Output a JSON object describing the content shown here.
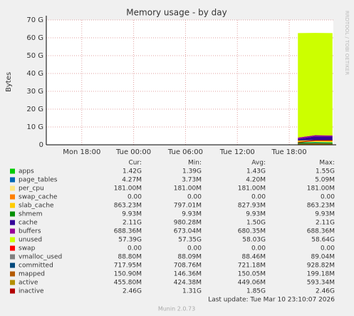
{
  "chart_data": {
    "type": "area",
    "title": "Memory usage - by day",
    "y_label": "Bytes",
    "side_text": "RRDTOOL / TOBI OETIKER",
    "x": [
      25,
      27,
      29
    ],
    "xlim": [
      -4.1,
      29.1
    ],
    "xticks": [
      {
        "value": 0,
        "label": "Mon 18:00"
      },
      {
        "value": 6,
        "label": "Tue 00:00"
      },
      {
        "value": 12,
        "label": "Tue 06:00"
      },
      {
        "value": 18,
        "label": "Tue 12:00"
      },
      {
        "value": 24,
        "label": "Tue 18:00"
      }
    ],
    "ylim": [
      0,
      70
    ],
    "yticks": [
      {
        "value": 0,
        "label": "0"
      },
      {
        "value": 10,
        "label": "10 G"
      },
      {
        "value": 20,
        "label": "20 G"
      },
      {
        "value": 30,
        "label": "30 G"
      },
      {
        "value": 40,
        "label": "40 G"
      },
      {
        "value": 50,
        "label": "50 G"
      },
      {
        "value": 60,
        "label": "60 G"
      },
      {
        "value": 70,
        "label": "70 G"
      }
    ],
    "grid": true,
    "stat_headers": [
      "Cur:",
      "Min:",
      "Avg:",
      "Max:"
    ],
    "series": [
      {
        "name": "apps",
        "color": "#00cc00",
        "mode": "area",
        "values": [
          1.39,
          1.55,
          1.42
        ],
        "stats": [
          "1.42G",
          "1.39G",
          "1.43G",
          "1.55G"
        ]
      },
      {
        "name": "page_tables",
        "color": "#0066b3",
        "mode": "area",
        "values": [
          0.004,
          0.005,
          0.004
        ],
        "stats": [
          "4.27M",
          "3.73M",
          "4.20M",
          "5.09M"
        ]
      },
      {
        "name": "per_cpu",
        "color": "#ffe680",
        "mode": "area",
        "values": [
          0.18,
          0.18,
          0.18
        ],
        "stats": [
          "181.00M",
          "181.00M",
          "181.00M",
          "181.00M"
        ]
      },
      {
        "name": "swap_cache",
        "color": "#ff8000",
        "mode": "area",
        "values": [
          0,
          0,
          0
        ],
        "stats": [
          "0.00",
          "0.00",
          "0.00",
          "0.00"
        ]
      },
      {
        "name": "slab_cache",
        "color": "#ffcc00",
        "mode": "area",
        "values": [
          0.8,
          0.86,
          0.86
        ],
        "stats": [
          "863.23M",
          "797.01M",
          "827.93M",
          "863.23M"
        ]
      },
      {
        "name": "shmem",
        "color": "#008f00",
        "mode": "area",
        "values": [
          0.01,
          0.01,
          0.01
        ],
        "stats": [
          "9.93M",
          "9.93M",
          "9.93M",
          "9.93M"
        ]
      },
      {
        "name": "cache",
        "color": "#330099",
        "mode": "area",
        "values": [
          0.98,
          2.11,
          2.11
        ],
        "stats": [
          "2.11G",
          "980.28M",
          "1.50G",
          "2.11G"
        ]
      },
      {
        "name": "buffers",
        "color": "#990099",
        "mode": "area",
        "values": [
          0.67,
          0.69,
          0.69
        ],
        "stats": [
          "688.36M",
          "673.04M",
          "680.35M",
          "688.36M"
        ]
      },
      {
        "name": "unused",
        "color": "#ccff00",
        "mode": "area",
        "values": [
          58.64,
          57.35,
          57.39
        ],
        "stats": [
          "57.39G",
          "57.35G",
          "58.03G",
          "58.64G"
        ]
      },
      {
        "name": "swap",
        "color": "#ff0000",
        "mode": "line",
        "values": [
          0,
          0,
          0
        ],
        "stats": [
          "0.00",
          "0.00",
          "0.00",
          "0.00"
        ]
      },
      {
        "name": "vmalloc_used",
        "color": "#808080",
        "mode": "line",
        "values": [
          0.09,
          0.09,
          0.09
        ],
        "stats": [
          "88.80M",
          "88.09M",
          "88.46M",
          "89.04M"
        ]
      },
      {
        "name": "committed",
        "color": "#00487d",
        "mode": "line",
        "values": [
          0.71,
          0.93,
          0.72
        ],
        "stats": [
          "717.95M",
          "708.76M",
          "721.18M",
          "928.82M"
        ]
      },
      {
        "name": "mapped",
        "color": "#b35a00",
        "mode": "line",
        "values": [
          0.15,
          0.2,
          0.15
        ],
        "stats": [
          "150.90M",
          "146.36M",
          "150.05M",
          "199.18M"
        ]
      },
      {
        "name": "active",
        "color": "#b38f00",
        "mode": "line",
        "values": [
          0.42,
          0.59,
          0.46
        ],
        "stats": [
          "455.80M",
          "424.38M",
          "449.06M",
          "593.34M"
        ]
      },
      {
        "name": "inactive",
        "color": "#b30000",
        "mode": "line",
        "values": [
          1.31,
          2.46,
          2.46
        ],
        "stats": [
          "2.46G",
          "1.31G",
          "1.85G",
          "2.46G"
        ]
      }
    ],
    "last_update": "Last update: Tue Mar 10 23:10:07 2026",
    "footer": "Munin 2.0.73"
  }
}
